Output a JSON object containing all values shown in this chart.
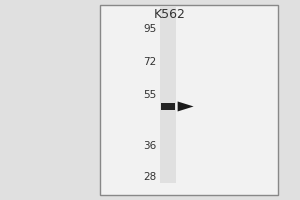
{
  "title": "K562",
  "bg_color": "#e8e8e8",
  "panel_bg": "#d8d8d8",
  "lane_color": "#d0d0d0",
  "lane_color2": "#c8c8c8",
  "white_bg": "#f0f0f0",
  "mw_markers": [
    95,
    72,
    55,
    36,
    28
  ],
  "band_mw": 50,
  "mw_log_min": 1.41,
  "mw_log_max": 2.02,
  "arrow_color": "#1a1a1a",
  "band_color": "#222222",
  "title_fontsize": 9,
  "marker_fontsize": 7.5,
  "outer_bg": "#e0e0e0",
  "frame_color": "#888888"
}
